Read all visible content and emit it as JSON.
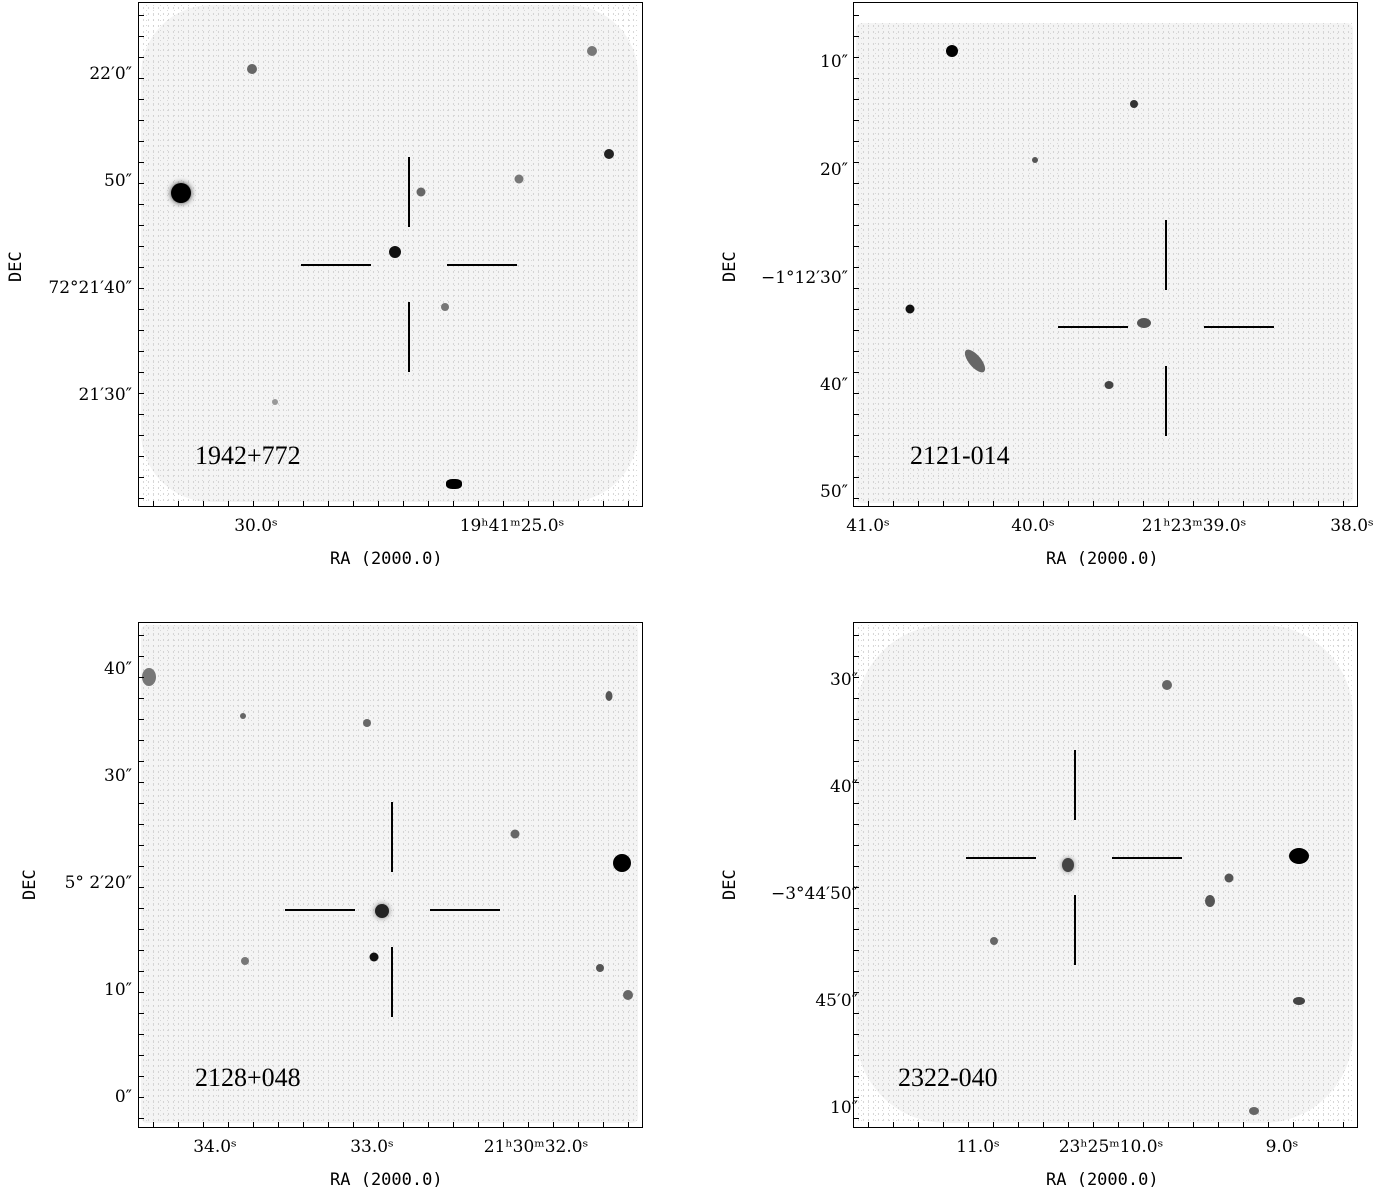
{
  "panels": [
    {
      "name": "1942+772",
      "x_axis_label": "RA (2000.0)",
      "y_axis_label": "DEC",
      "ra_ticks": [
        "30.0ˢ",
        "19ʰ41ᵐ25.0ˢ"
      ],
      "dec_ticks": [
        "22′0″",
        "50″",
        "72°21′40″",
        "21′30″"
      ]
    },
    {
      "name": "2121-014",
      "x_axis_label": "RA (2000.0)",
      "y_axis_label": "DEC",
      "ra_ticks": [
        "41.0ˢ",
        "40.0ˢ",
        "21ʰ23ᵐ39.0ˢ",
        "38.0ˢ"
      ],
      "dec_ticks": [
        "10″",
        "20″",
        "−1°12′30″",
        "40″",
        "50″"
      ]
    },
    {
      "name": "2128+048",
      "x_axis_label": "RA (2000.0)",
      "y_axis_label": "DEC",
      "ra_ticks": [
        "34.0ˢ",
        "33.0ˢ",
        "21ʰ30ᵐ32.0ˢ"
      ],
      "dec_ticks": [
        "40″",
        "30″",
        "5° 2′20″",
        "10″",
        "0″"
      ]
    },
    {
      "name": "2322-040",
      "x_axis_label": "RA (2000.0)",
      "y_axis_label": "DEC",
      "ra_ticks": [
        "11.0ˢ",
        "23ʰ25ᵐ10.0ˢ",
        "9.0ˢ"
      ],
      "dec_ticks": [
        "30″",
        "40″",
        "−3°44′50″",
        "45′0″",
        "10″"
      ]
    }
  ]
}
